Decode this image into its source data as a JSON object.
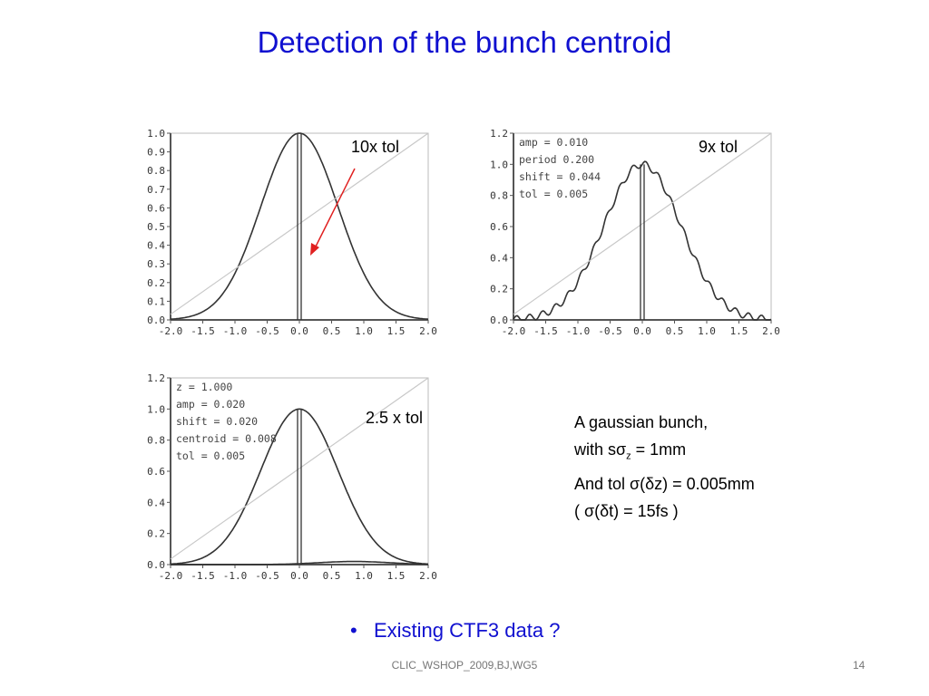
{
  "slide": {
    "title": "Detection of the bunch centroid",
    "bullet": "Existing CTF3 data ?",
    "footer": "CLIC_WSHOP_2009,BJ,WG5",
    "page_number": "14"
  },
  "labels": {
    "tol10": "10x tol",
    "tol9": "9x tol",
    "tol25": "2.5 x tol"
  },
  "description": {
    "line1": "A gaussian bunch,",
    "line2_prefix": "with sσ",
    "line2_sub": "z",
    "line2_suffix": " = 1mm",
    "line3": "And tol σ(δz) = 0.005mm",
    "line4": "( σ(δt) = 15fs )"
  },
  "chart_data": [
    {
      "type": "line",
      "x_ticks": [
        "-2.0",
        "-1.5",
        "-1.0",
        "-0.5",
        "0.0",
        "0.5",
        "1.0",
        "1.5",
        "2.0"
      ],
      "y_ticks": [
        "0.0",
        "0.1",
        "0.2",
        "0.3",
        "0.4",
        "0.5",
        "0.6",
        "0.7",
        "0.8",
        "0.9",
        "1.0"
      ],
      "xlim": [
        -2,
        2
      ],
      "ylim": [
        0,
        1.0
      ],
      "series": [
        {
          "kind": "gaussian",
          "sigma": 0.6,
          "center": 0,
          "amplitude": 1.0
        },
        {
          "kind": "diagonal"
        },
        {
          "kind": "centroid",
          "x": 0.0
        }
      ],
      "params": []
    },
    {
      "type": "line",
      "x_ticks": [
        "-2.0",
        "-1.5",
        "-1.0",
        "-0.5",
        "0.0",
        "0.5",
        "1.0",
        "1.5",
        "2.0"
      ],
      "y_ticks": [
        "0.0",
        "0.2",
        "0.4",
        "0.6",
        "0.8",
        "1.0",
        "1.2"
      ],
      "xlim": [
        -2,
        2
      ],
      "ylim": [
        0,
        1.2
      ],
      "series": [
        {
          "kind": "gaussian",
          "sigma": 0.6,
          "center": 0,
          "amplitude": 1.0,
          "ripple_amp": 0.01,
          "ripple_period": 0.2
        },
        {
          "kind": "diagonal"
        },
        {
          "kind": "centroid",
          "x": 0.0
        }
      ],
      "params": [
        "amp =  0.010",
        "period  0.200",
        "shift =  0.044",
        " tol =  0.005"
      ]
    },
    {
      "type": "line",
      "x_ticks": [
        "-2.0",
        "-1.5",
        "-1.0",
        "-0.5",
        "0.0",
        "0.5",
        "1.0",
        "1.5",
        "2.0"
      ],
      "y_ticks": [
        "0.0",
        "0.2",
        "0.4",
        "0.6",
        "0.8",
        "1.0",
        "1.2"
      ],
      "xlim": [
        -2,
        2
      ],
      "ylim": [
        0,
        1.2
      ],
      "series": [
        {
          "kind": "gaussian",
          "sigma": 0.6,
          "center": 0,
          "amplitude": 1.0
        },
        {
          "kind": "small_bump",
          "center": 0.85,
          "sigma": 0.55,
          "amplitude": 0.02
        },
        {
          "kind": "diagonal"
        },
        {
          "kind": "centroid",
          "x": 0.0
        }
      ],
      "params": [
        "z =  1.000",
        "amp =  0.020",
        "shift =  0.020",
        "centroid =  0.008",
        "tol =  0.005"
      ]
    }
  ],
  "colors": {
    "title": "#1010d0",
    "curve": "#333333",
    "diagonal": "#c8c8c8",
    "arrow": "#e02020"
  }
}
